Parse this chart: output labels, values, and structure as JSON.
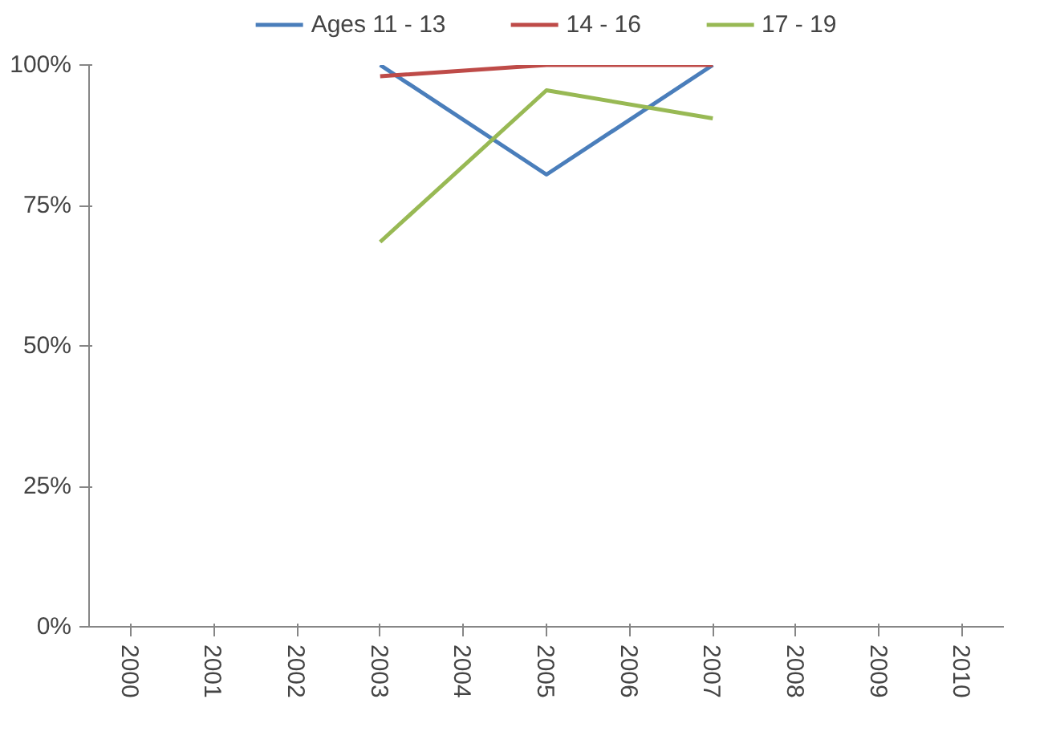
{
  "chart_data": {
    "type": "line",
    "categories": [
      "2000",
      "2001",
      "2002",
      "2003",
      "2004",
      "2005",
      "2006",
      "2007",
      "2008",
      "2009",
      "2010"
    ],
    "series": [
      {
        "name": "Ages 11 - 13",
        "color": "#4a7ebb",
        "values": [
          null,
          null,
          null,
          100,
          null,
          80.5,
          null,
          100,
          null,
          null,
          null
        ]
      },
      {
        "name": "14 - 16",
        "color": "#be4b48",
        "values": [
          null,
          null,
          null,
          98,
          null,
          100,
          null,
          100,
          null,
          null,
          null
        ]
      },
      {
        "name": "17 - 19",
        "color": "#98b954",
        "values": [
          null,
          null,
          null,
          68.5,
          null,
          95.5,
          null,
          90.5,
          null,
          null,
          null
        ]
      }
    ],
    "ylim": [
      0,
      100
    ],
    "yticks": [
      {
        "value": 0,
        "label": "0%"
      },
      {
        "value": 25,
        "label": "25%"
      },
      {
        "value": 50,
        "label": "50%"
      },
      {
        "value": 75,
        "label": "75%"
      },
      {
        "value": 100,
        "label": "100%"
      }
    ],
    "grid": false,
    "legend": "top",
    "marker": "none",
    "line_style": "solid"
  }
}
